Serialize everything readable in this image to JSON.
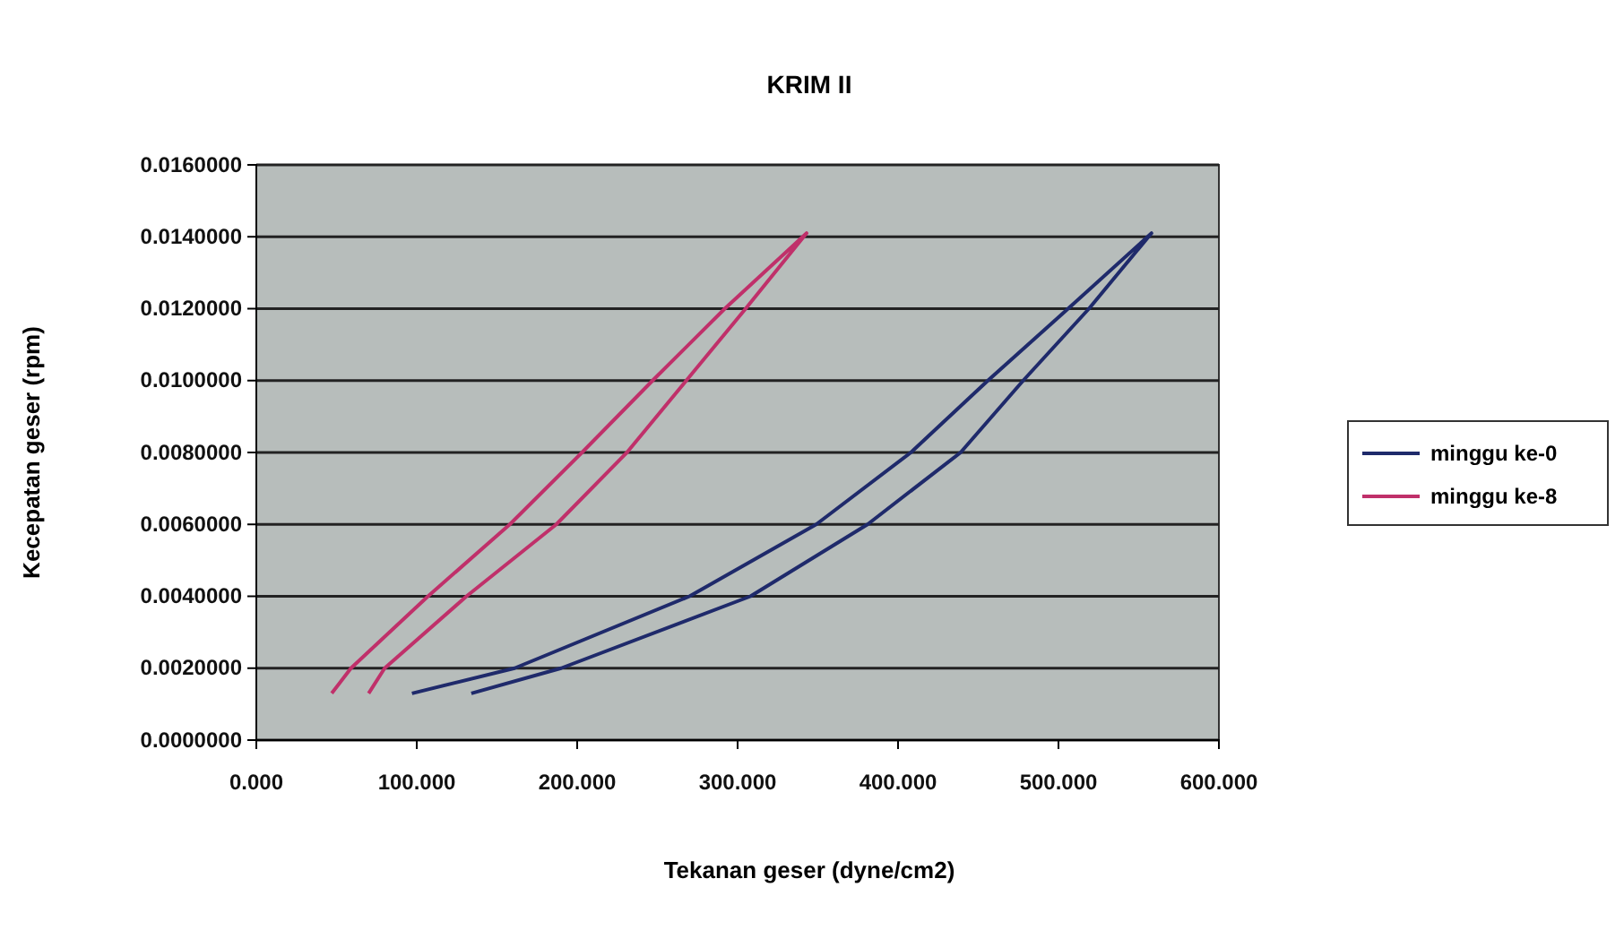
{
  "chart_data": {
    "type": "line",
    "title": "KRIM II",
    "xlabel": "Tekanan geser (dyne/cm2)",
    "ylabel": "Kecepatan geser (rpm)",
    "xlim": [
      0,
      600
    ],
    "ylim": [
      0,
      0.016
    ],
    "xticks": [
      {
        "value": 0,
        "label": "0.000"
      },
      {
        "value": 100,
        "label": "100.000"
      },
      {
        "value": 200,
        "label": "200.000"
      },
      {
        "value": 300,
        "label": "300.000"
      },
      {
        "value": 400,
        "label": "400.000"
      },
      {
        "value": 500,
        "label": "500.000"
      },
      {
        "value": 600,
        "label": "600.000"
      }
    ],
    "yticks": [
      {
        "value": 0,
        "label": "0.0000000"
      },
      {
        "value": 0.002,
        "label": "0.0020000"
      },
      {
        "value": 0.004,
        "label": "0.0040000"
      },
      {
        "value": 0.006,
        "label": "0.0060000"
      },
      {
        "value": 0.008,
        "label": "0.0080000"
      },
      {
        "value": 0.01,
        "label": "0.0100000"
      },
      {
        "value": 0.012,
        "label": "0.0120000"
      },
      {
        "value": 0.014,
        "label": "0.0140000"
      },
      {
        "value": 0.016,
        "label": "0.0160000"
      }
    ],
    "grid": "y",
    "legend": "right",
    "marker": "none",
    "line_style": "solid",
    "series": [
      {
        "name": "minggu ke-0",
        "color": "#1f2a6b",
        "x": [
          97,
          161,
          270,
          349,
          408,
          456,
          506,
          558,
          519,
          478,
          439,
          381,
          308,
          190,
          134
        ],
        "values": [
          0.0013,
          0.002,
          0.004,
          0.006,
          0.008,
          0.01,
          0.012,
          0.0141,
          0.012,
          0.01,
          0.008,
          0.006,
          0.004,
          0.002,
          0.0013
        ]
      },
      {
        "name": "minggu ke-8",
        "color": "#c0306a",
        "x": [
          47,
          59,
          107,
          158,
          203,
          247,
          292,
          343,
          305,
          268,
          231,
          187,
          131,
          80,
          70
        ],
        "values": [
          0.0013,
          0.002,
          0.004,
          0.006,
          0.008,
          0.01,
          0.012,
          0.0141,
          0.012,
          0.01,
          0.008,
          0.006,
          0.004,
          0.002,
          0.0013
        ]
      }
    ]
  }
}
